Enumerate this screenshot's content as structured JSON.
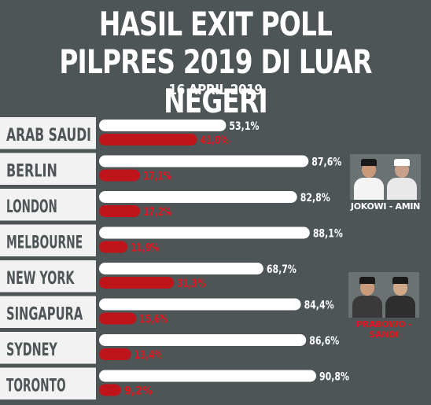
{
  "header": {
    "title_line1": "HASIL EXIT POLL",
    "title_line2": "PILPRES 2019 DI LUAR NEGERI",
    "date": "16 APRIL 2019"
  },
  "candidates": {
    "a_label": "JOKOWI - AMIN",
    "b_label": "PRABOWO - SANDI"
  },
  "colors": {
    "background": "#4d5556",
    "bar_a": "#ffffff",
    "bar_b": "#c0141b",
    "label_bg": "#f2f2f2",
    "label_text": "#4d5556",
    "value_a_text": "#ffffff",
    "value_b_text": "#e0161e"
  },
  "chart_data": {
    "type": "bar",
    "orientation": "horizontal",
    "categories": [
      "ARAB SAUDI",
      "BERLIN",
      "LONDON",
      "MELBOURNE",
      "NEW YORK",
      "SINGAPURA",
      "SYDNEY",
      "TORONTO"
    ],
    "series": [
      {
        "name": "JOKOWI - AMIN",
        "values": [
          53.1,
          87.6,
          82.8,
          88.1,
          68.7,
          84.4,
          86.6,
          90.8
        ]
      },
      {
        "name": "PRABOWO - SANDI",
        "values": [
          41.0,
          17.1,
          17.2,
          11.9,
          31.3,
          15.6,
          13.4,
          9.2
        ]
      }
    ],
    "value_labels_a": [
      "53,1%",
      "87,6%",
      "82,8%",
      "88,1%",
      "68,7%",
      "84,4%",
      "86,6%",
      "90,8%"
    ],
    "value_labels_b": [
      "41,0%",
      "17,1%",
      "17,2%",
      "11,9%",
      "31,3%",
      "15,6%",
      "13,4%",
      "9,2%"
    ],
    "xlim": [
      0,
      100
    ],
    "legend": "right"
  }
}
